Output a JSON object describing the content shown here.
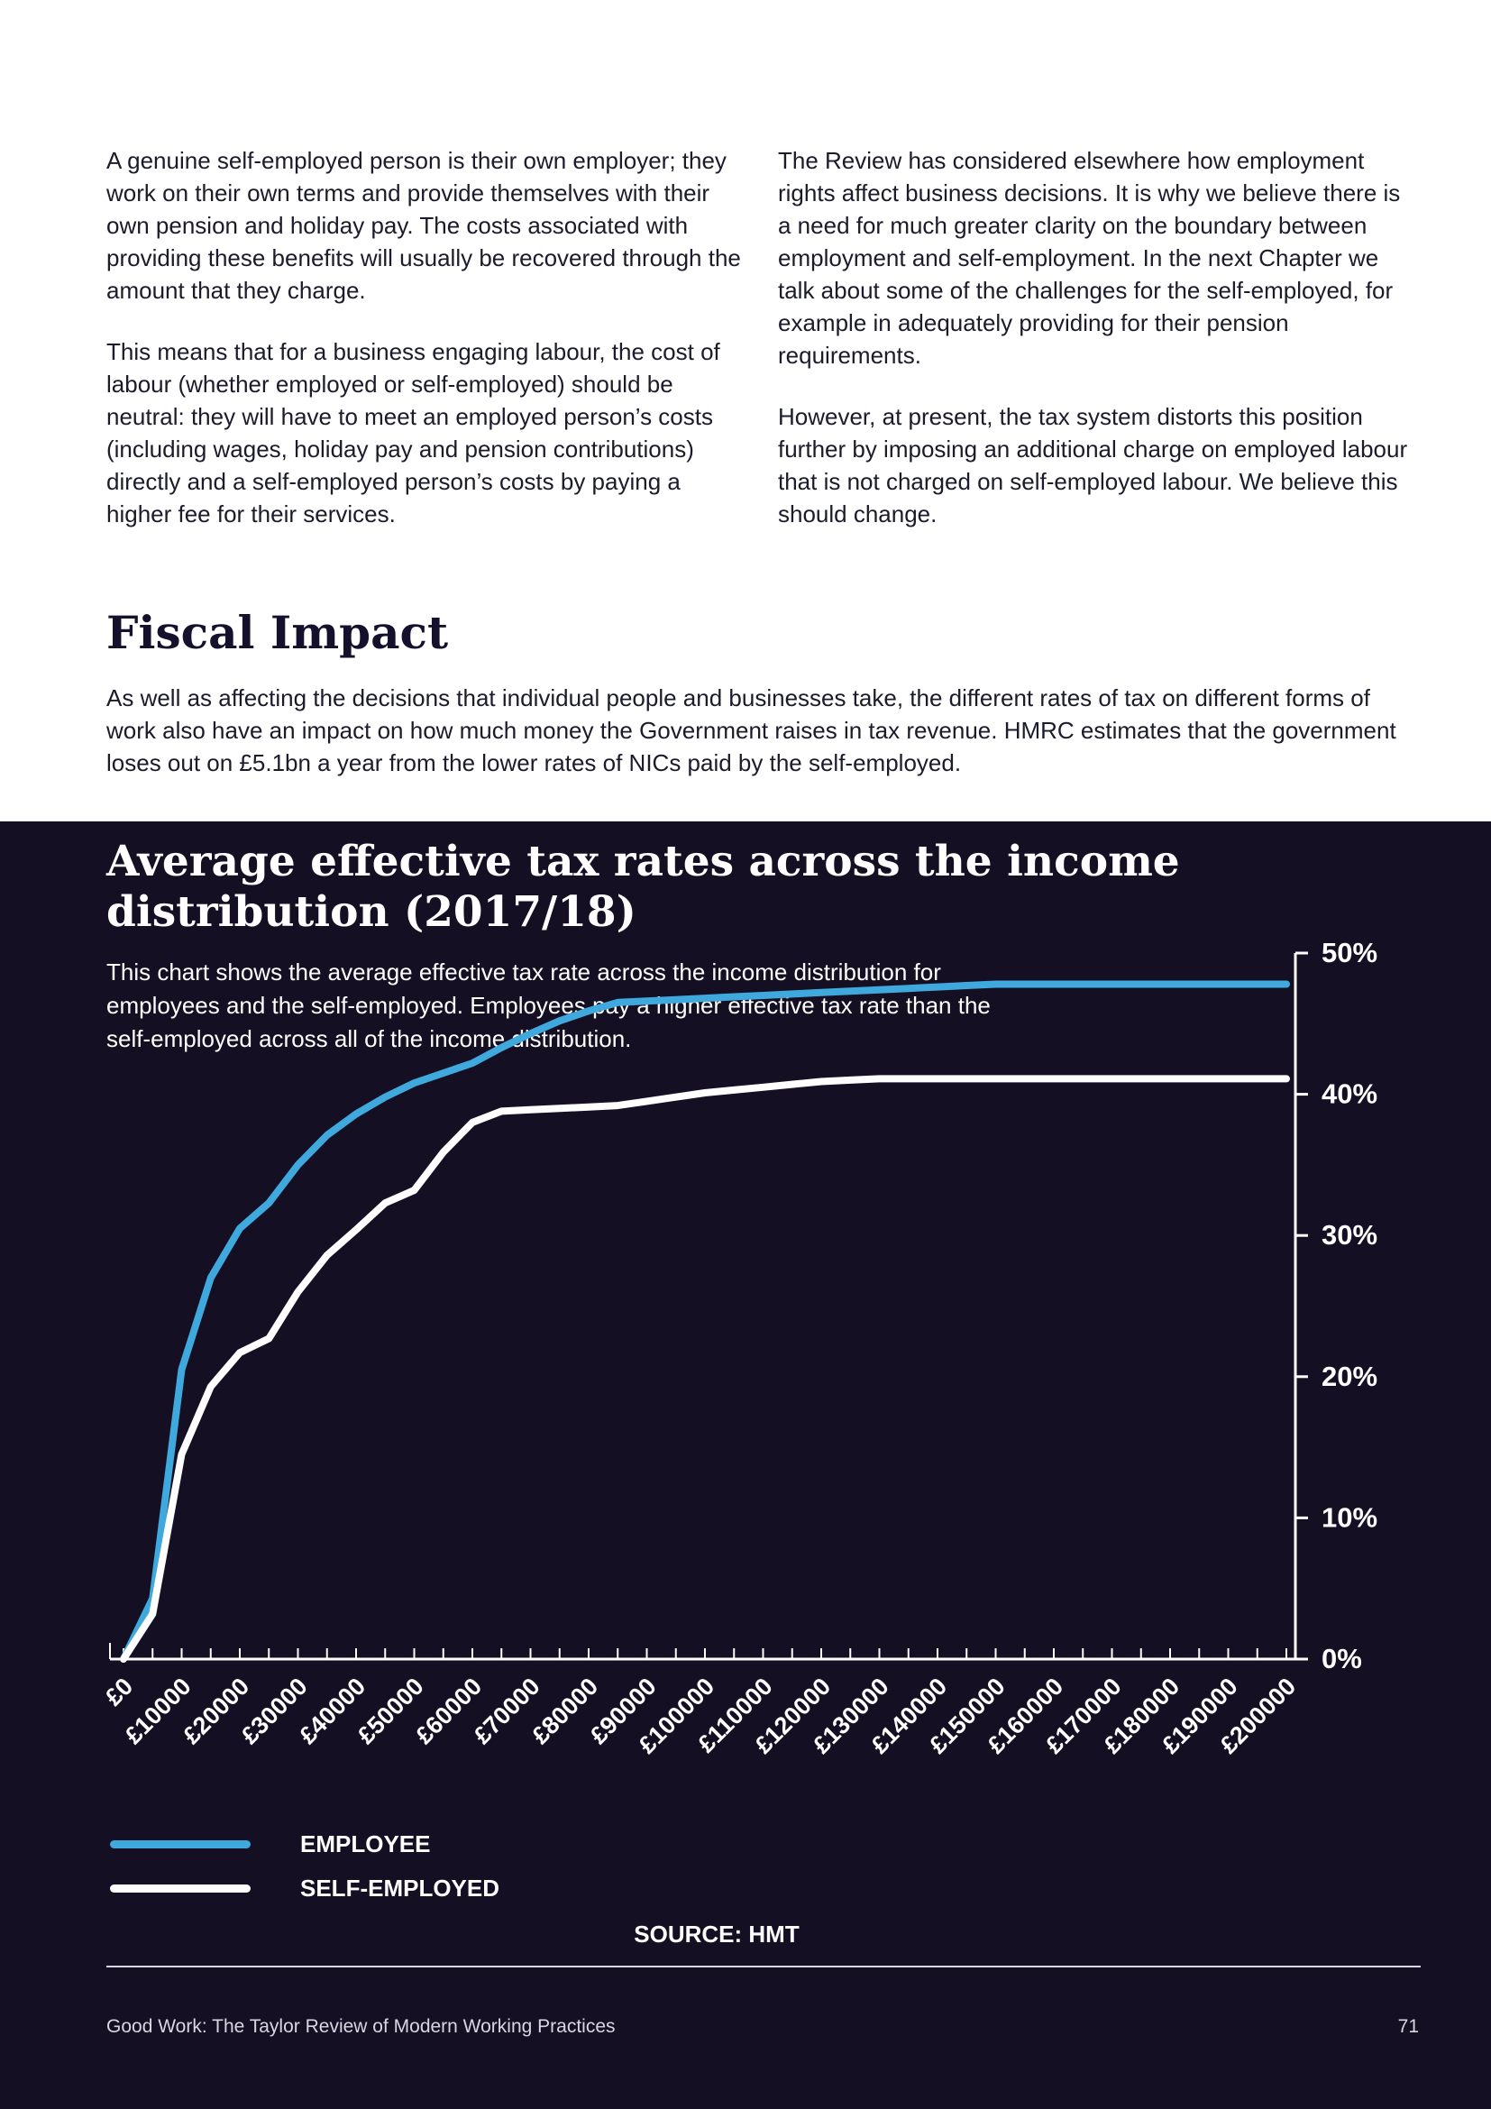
{
  "intro": {
    "left_paragraphs": [
      "A genuine self-employed person is their own employer; they work on their own terms and provide themselves with their own pension and holiday pay. The costs associated with providing these benefits will usually be recovered through the amount that they charge.",
      "This means that for a business engaging labour, the cost of labour (whether employed or self-employed) should be neutral: they will have to meet an employed person’s costs (including wages, holiday pay and pension contributions) directly and a self-employed person’s costs by paying a higher fee for their services."
    ],
    "right_paragraphs": [
      "The Review has considered elsewhere how employment rights affect business decisions. It is why we believe there is a need for much greater clarity on the boundary between employment and self-employment. In the next Chapter we talk about some of the challenges for the self-employed, for example in adequately providing for their pension requirements.",
      "However, at present, the tax system distorts this position further by imposing an additional charge on employed labour that is not charged on self-employed labour. We believe this should change."
    ]
  },
  "fiscal": {
    "heading": "Fiscal Impact",
    "body": "As well as affecting the decisions that individual people and businesses take, the different rates of tax on different forms of work also have an impact on how much money the Government raises in tax revenue. HMRC estimates that the government loses out on £5.1bn a year from the lower rates of NICs paid by the self-employed."
  },
  "chart_data": {
    "type": "line",
    "title": "Average effective tax rates across the income distribution (2017/18)",
    "description": "This chart shows the average effective tax rate across the income distribution for employees and the self-employed. Employees pay a higher effective tax rate than the self-employed across all of the income distribution.",
    "xlabel": "",
    "ylabel": "",
    "x": [
      0,
      5000,
      10000,
      15000,
      20000,
      25000,
      30000,
      35000,
      40000,
      45000,
      50000,
      55000,
      60000,
      65000,
      70000,
      75000,
      80000,
      85000,
      90000,
      95000,
      100000,
      105000,
      110000,
      115000,
      120000,
      125000,
      130000,
      135000,
      140000,
      145000,
      150000,
      155000,
      160000,
      165000,
      170000,
      175000,
      180000,
      185000,
      190000,
      195000,
      200000
    ],
    "x_tick_labels": [
      "£0",
      "£10000",
      "£20000",
      "£30000",
      "£40000",
      "£50000",
      "£60000",
      "£70000",
      "£80000",
      "£90000",
      "£100000",
      "£110000",
      "£120000",
      "£130000",
      "£140000",
      "£150000",
      "£160000",
      "£170000",
      "£180000",
      "£190000",
      "£200000"
    ],
    "y_tick_labels": [
      "0%",
      "10%",
      "20%",
      "30%",
      "40%",
      "50%"
    ],
    "ylim": [
      0,
      50
    ],
    "xlim": [
      0,
      200000
    ],
    "y_axis_position": "right",
    "series": [
      {
        "name": "EMPLOYEE",
        "color": "#3fa9dd",
        "values": [
          0,
          4.3,
          20.5,
          27.0,
          30.5,
          32.3,
          35.0,
          37.1,
          38.6,
          39.8,
          40.8,
          41.5,
          42.2,
          43.3,
          44.3,
          45.2,
          45.9,
          46.5,
          46.6,
          46.7,
          46.8,
          46.9,
          47.0,
          47.1,
          47.2,
          47.3,
          47.4,
          47.5,
          47.6,
          47.7,
          47.8,
          47.8,
          47.8,
          47.8,
          47.8,
          47.8,
          47.8,
          47.8,
          47.8,
          47.8,
          47.8
        ]
      },
      {
        "name": "SELF-EMPLOYED",
        "color": "#ffffff",
        "values": [
          0,
          3.2,
          14.5,
          19.3,
          21.7,
          22.7,
          26.0,
          28.6,
          30.4,
          32.3,
          33.2,
          35.9,
          38.0,
          38.8,
          38.9,
          39.0,
          39.1,
          39.2,
          39.5,
          39.8,
          40.1,
          40.3,
          40.5,
          40.7,
          40.9,
          41.0,
          41.1,
          41.1,
          41.1,
          41.1,
          41.1,
          41.1,
          41.1,
          41.1,
          41.1,
          41.1,
          41.1,
          41.1,
          41.1,
          41.1,
          41.1
        ]
      }
    ],
    "legend_placement": "bottom-left",
    "source": "SOURCE: HMT"
  },
  "footer": {
    "title": "Good Work: The Taylor Review of Modern Working Practices",
    "page_number": "71"
  },
  "colors": {
    "panel_background": "#150f24",
    "employee_line": "#3fa9dd",
    "self_employed_line": "#ffffff"
  }
}
